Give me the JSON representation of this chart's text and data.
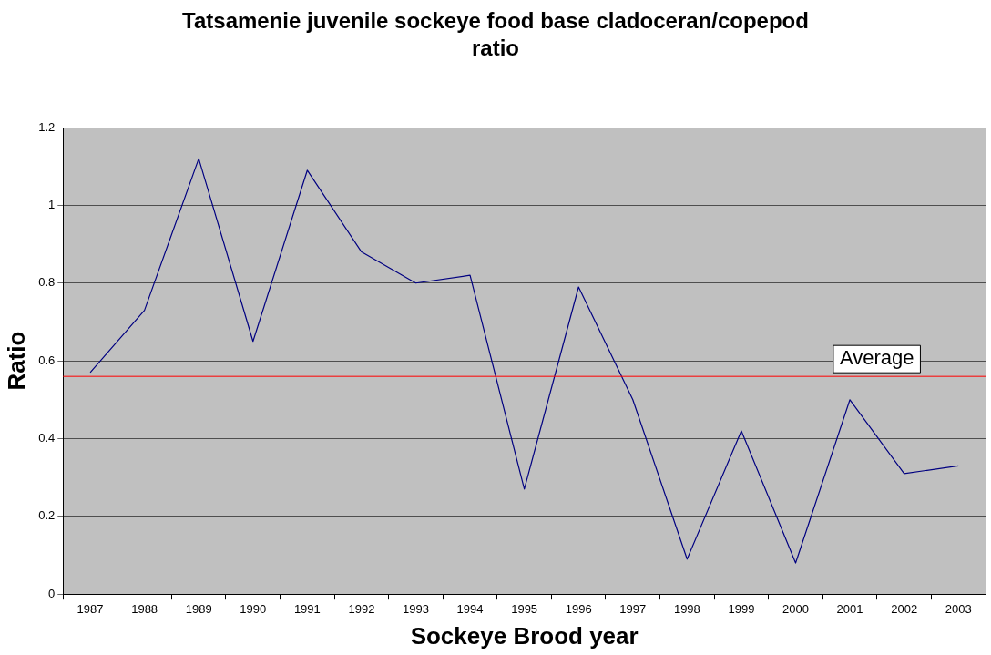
{
  "chart_data": {
    "type": "line",
    "title": "Tatsamenie juvenile sockeye food base cladoceran/copepod ratio",
    "xlabel": "Sockeye Brood year",
    "ylabel": "Ratio",
    "categories": [
      "1987",
      "1988",
      "1989",
      "1990",
      "1991",
      "1992",
      "1993",
      "1994",
      "1995",
      "1996",
      "1997",
      "1998",
      "1999",
      "2000",
      "2001",
      "2002",
      "2003"
    ],
    "series": [
      {
        "color": "#000080",
        "values": [
          0.57,
          0.73,
          1.12,
          0.65,
          1.09,
          0.88,
          0.8,
          0.82,
          0.27,
          0.79,
          0.5,
          0.09,
          0.42,
          0.08,
          0.5,
          0.31,
          0.33
        ]
      }
    ],
    "ylim": [
      0,
      1.2
    ],
    "yticks": [
      0,
      0.2,
      0.4,
      0.6,
      0.8,
      1,
      1.2
    ],
    "grid": "y",
    "legend": false,
    "marker": "none",
    "line_style": "solid",
    "ref_lines": [
      {
        "axis": "y",
        "value": 0.56,
        "label": "Average",
        "color": "#ff0000"
      }
    ]
  }
}
